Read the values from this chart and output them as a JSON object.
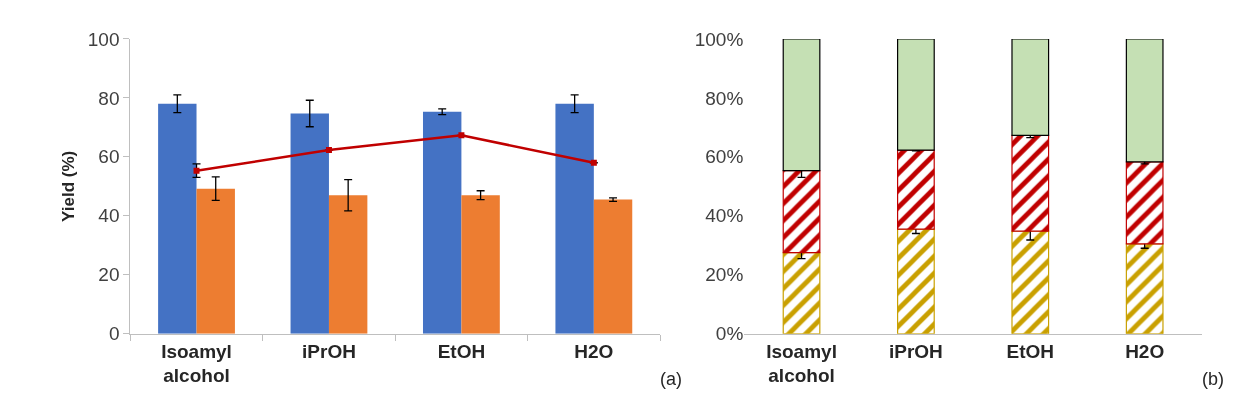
{
  "chart_data": [
    {
      "type": "bar",
      "ylabel": "Yield (%)",
      "categories": [
        "Isoamyl alcohol",
        "iPrOH",
        "EtOH",
        "H2O"
      ],
      "ylim": [
        0,
        100
      ],
      "yticks": [
        0,
        20,
        40,
        60,
        80,
        100
      ],
      "annotations": [
        "(a)"
      ],
      "series": [
        {
          "color": "#4472c4",
          "values": [
            78,
            74.7,
            75.3,
            78
          ],
          "errors": [
            3,
            4.5,
            1,
            3
          ]
        },
        {
          "color": "#ed7d31",
          "values": [
            49.2,
            47,
            47,
            45.5
          ],
          "errors": [
            4,
            5.3,
            1.5,
            0.6
          ]
        },
        {
          "type": "line",
          "color": "#c00000",
          "marker": "square",
          "line_style": "solid",
          "values": [
            55.3,
            62.3,
            67.3,
            58
          ],
          "errors": [
            2.3,
            null,
            null,
            null
          ]
        }
      ]
    },
    {
      "type": "bar",
      "stacked": true,
      "categories": [
        "Isoamyl alcohol",
        "iPrOH",
        "EtOH",
        "H2O"
      ],
      "ylim": [
        0,
        100
      ],
      "yticks": [
        {
          "value": 0,
          "label": "0%"
        },
        {
          "value": 20,
          "label": "20%"
        },
        {
          "value": 40,
          "label": "40%"
        },
        {
          "value": 60,
          "label": "60%"
        },
        {
          "value": 80,
          "label": "80%"
        },
        {
          "value": 100,
          "label": "100%"
        }
      ],
      "annotations": [
        "(b)"
      ],
      "series": [
        {
          "color": "#c9a000",
          "values": [
            27.5,
            35.5,
            34.8,
            30.5
          ],
          "errors": [
            2,
            1.5,
            3,
            1.5
          ]
        },
        {
          "color": "#c00000",
          "values": [
            27.8,
            26.8,
            32.5,
            27.8
          ],
          "errors": [
            2.3,
            0.3,
            0.8,
            0.7
          ]
        },
        {
          "color": "#c5e0b4",
          "values": [
            44.7,
            37.7,
            32.7,
            41.7
          ]
        }
      ]
    }
  ]
}
